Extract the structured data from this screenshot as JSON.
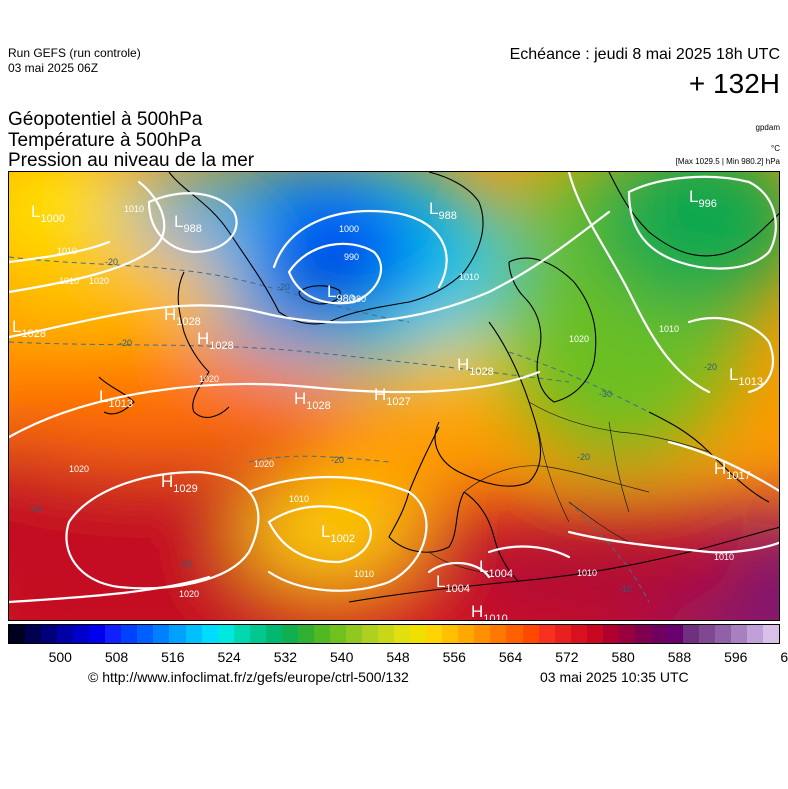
{
  "header": {
    "run_title": "Run GEFS (run controle)",
    "run_date": "03 mai 2025 06Z",
    "echeance": "Echéance : jeudi 8 mai 2025 18h UTC",
    "lead_time": "+ 132H"
  },
  "parameters": [
    "Géopotentiel à 500hPa",
    "Température à 500hPa",
    "Pression au niveau de la mer"
  ],
  "units": {
    "geopotential": "gpdam",
    "temperature": "°C",
    "pressure": "[Max 1029.5 | Min 980.2] hPa"
  },
  "pressure_centres": [
    {
      "type": "L",
      "value": "1000"
    },
    {
      "type": "L",
      "value": "988"
    },
    {
      "type": "L",
      "value": "980"
    },
    {
      "type": "L",
      "value": "988"
    },
    {
      "type": "L",
      "value": "996"
    },
    {
      "type": "L",
      "value": "1028"
    },
    {
      "type": "H",
      "value": "1028"
    },
    {
      "type": "H",
      "value": "1028"
    },
    {
      "type": "H",
      "value": "1028"
    },
    {
      "type": "H",
      "value": "1027"
    },
    {
      "type": "H",
      "value": "1028"
    },
    {
      "type": "L",
      "value": "1013"
    },
    {
      "type": "L",
      "value": "1013"
    },
    {
      "type": "H",
      "value": "1029"
    },
    {
      "type": "L",
      "value": "1002"
    },
    {
      "type": "H",
      "value": "1017"
    },
    {
      "type": "L",
      "value": "1004"
    },
    {
      "type": "L",
      "value": "1004"
    },
    {
      "type": "H",
      "value": "1010"
    }
  ],
  "isobar_labels": [
    "1010",
    "1010",
    "1020",
    "1010",
    "1000",
    "990",
    "980",
    "1010",
    "1020",
    "1010",
    "1020",
    "1020",
    "1020",
    "1010",
    "1010",
    "1010",
    "1010",
    "1020"
  ],
  "temperature_labels": [
    "-20",
    "-20",
    "-20",
    "-20",
    "-30",
    "-20",
    "-20",
    "-10",
    "-10",
    "-10"
  ],
  "palette": {
    "colors": [
      "#000020",
      "#000050",
      "#00007a",
      "#0000a6",
      "#0000cc",
      "#0000ee",
      "#1020ff",
      "#0040ff",
      "#0060ff",
      "#0080ff",
      "#00a0ff",
      "#00bfff",
      "#00dcff",
      "#00e8e0",
      "#00d8b0",
      "#00c890",
      "#00b870",
      "#10b050",
      "#30b030",
      "#50b820",
      "#70c020",
      "#90c820",
      "#b0d020",
      "#c8d818",
      "#e0e010",
      "#f0e000",
      "#ffd400",
      "#ffc000",
      "#ffa800",
      "#ff9000",
      "#ff7800",
      "#ff6000",
      "#ff4800",
      "#f83020",
      "#e82020",
      "#d81020",
      "#c80820",
      "#b00030",
      "#980040",
      "#800050",
      "#700060",
      "#680070",
      "#703080",
      "#804890",
      "#9060a8",
      "#a880c0",
      "#c0a0d8",
      "#d8c0e8"
    ],
    "tick_labels": [
      "500",
      "508",
      "516",
      "524",
      "532",
      "540",
      "548",
      "556",
      "564",
      "572",
      "580",
      "588",
      "596",
      "604"
    ]
  },
  "footer": {
    "url": "© http://www.infoclimat.fr/z/gefs/europe/ctrl-500/132",
    "generated": "03 mai 2025 10:35 UTC"
  }
}
